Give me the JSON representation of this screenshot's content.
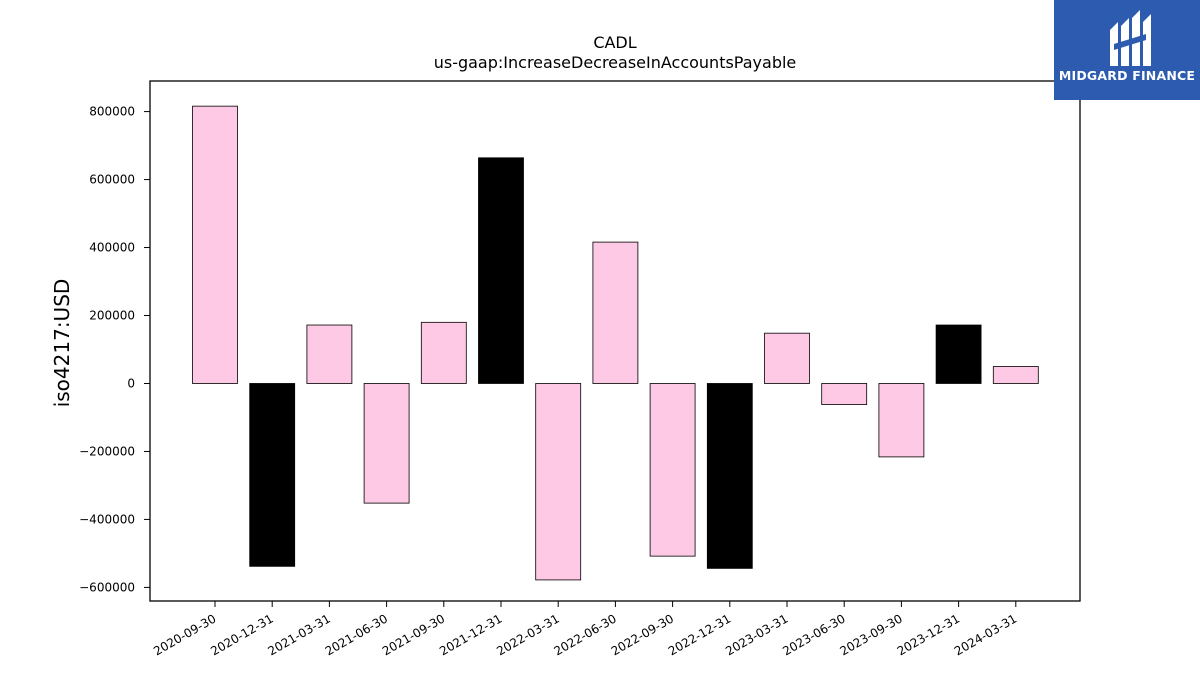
{
  "chart_data": {
    "type": "bar",
    "title": "CADL",
    "subtitle": "us-gaap:IncreaseDecreaseInAccountsPayable",
    "ylabel": "iso4217:USD",
    "xlabel": "",
    "categories": [
      "2020-09-30",
      "2020-12-31",
      "2021-03-31",
      "2021-06-30",
      "2021-09-30",
      "2021-12-31",
      "2022-03-31",
      "2022-06-30",
      "2022-09-30",
      "2022-12-31",
      "2023-03-31",
      "2023-06-30",
      "2023-09-30",
      "2023-12-31",
      "2024-03-31"
    ],
    "values": [
      816000,
      -538000,
      172000,
      -352000,
      180000,
      664000,
      -578000,
      416000,
      -508000,
      -544000,
      148000,
      -62000,
      -216000,
      172000,
      50000
    ],
    "fill_colors": [
      "#fdc9e4",
      "#000000",
      "#fdc9e4",
      "#fdc9e4",
      "#fdc9e4",
      "#000000",
      "#fdc9e4",
      "#fdc9e4",
      "#fdc9e4",
      "#000000",
      "#fdc9e4",
      "#fdc9e4",
      "#fdc9e4",
      "#000000",
      "#fdc9e4"
    ],
    "ylim": [
      -640000,
      890000
    ],
    "yticks": [
      -600000,
      -400000,
      -200000,
      0,
      200000,
      400000,
      600000,
      800000
    ],
    "ytick_labels": [
      "−600000",
      "−400000",
      "−200000",
      "0",
      "200000",
      "400000",
      "600000",
      "800000"
    ],
    "grid": false,
    "legend": "none"
  },
  "logo": {
    "text": "MIDGARD FINANCE",
    "background": "#2c5bb0"
  }
}
